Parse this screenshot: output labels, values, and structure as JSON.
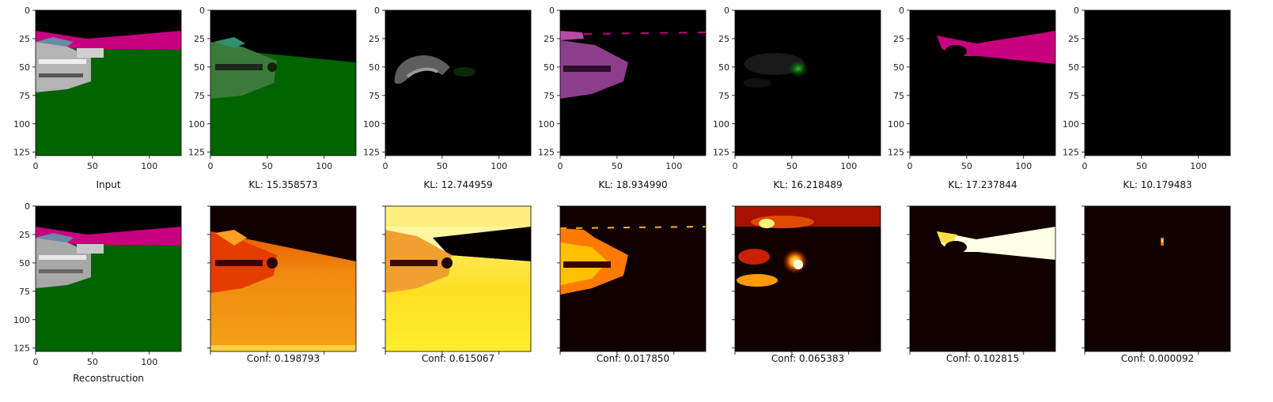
{
  "figure": {
    "rows": [
      {
        "panels": [
          {
            "caption": "Input"
          },
          {
            "caption": "KL: 15.358573"
          },
          {
            "caption": "KL: 12.744959"
          },
          {
            "caption": "KL: 18.934990"
          },
          {
            "caption": "KL: 16.218489"
          },
          {
            "caption": "KL: 17.237844"
          },
          {
            "caption": "KL: 10.179483"
          }
        ]
      },
      {
        "panels": [
          {
            "caption": "Reconstruction"
          },
          {
            "caption": "Conf: 0.198793"
          },
          {
            "caption": "Conf: 0.615067"
          },
          {
            "caption": "Conf: 0.017850"
          },
          {
            "caption": "Conf: 0.065383"
          },
          {
            "caption": "Conf: 0.102815"
          },
          {
            "caption": "Conf: 0.000092"
          }
        ]
      }
    ],
    "axis": {
      "xticks": [
        "0",
        "50",
        "100"
      ],
      "yticks": [
        "0",
        "25",
        "50",
        "75",
        "100",
        "125"
      ]
    },
    "colors": {
      "sky": "#000000",
      "ground": "#006400",
      "wall": "#c8007f",
      "car": "#c8c8c8",
      "heat_low": "#110000",
      "heat_mid": "#e63c00",
      "heat_high": "#ffff40"
    }
  }
}
